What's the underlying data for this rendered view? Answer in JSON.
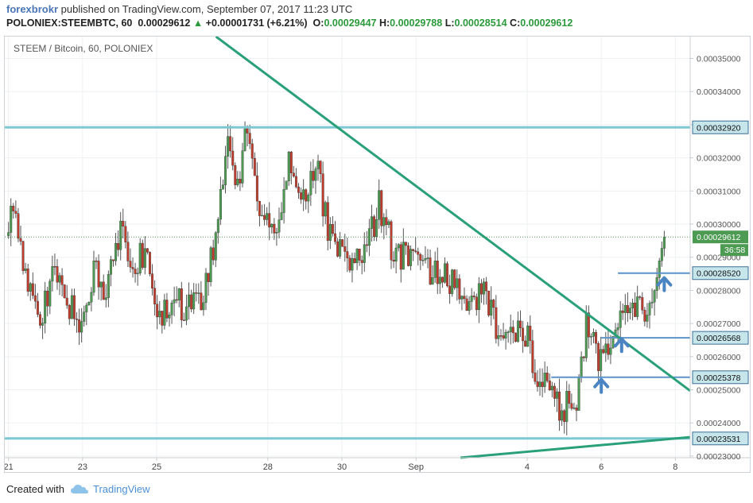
{
  "header": {
    "author": "forexbrokr",
    "published_text": " published on TradingView.com, September 07, 2017 11:23 UTC",
    "symbol": "POLONIEX:STEEMBTC, 60",
    "last": "0.00029612",
    "up_arrow": "▲",
    "change": "+0.00001731 (+6.21%)",
    "o_label": "O:",
    "o_value": "0.00029447",
    "h_label": "H:",
    "h_value": "0.00029788",
    "l_label": "L:",
    "l_value": "0.00028514",
    "c_label": "C:",
    "c_value": "0.00029612"
  },
  "colors": {
    "bull": "#4d9b52",
    "bear": "#c03d2e",
    "level_line": "#7ec8d4",
    "blue_level": "#5b93c9",
    "trendline": "#2aa07a",
    "arrow": "#4a84c2",
    "label_bg": "#c6e6ec"
  },
  "footer": {
    "created_with": "Created with",
    "brand": "TradingView",
    "logo_icon": "tradingview-cloud-icon"
  },
  "chart_data": {
    "type": "candlestick",
    "title": "STEEM / Bitcoin, 60, POLONIEX",
    "ylim": [
      0.0002295,
      0.0003566
    ],
    "y_ticks": [
      "0.00023000",
      "0.00024000",
      "0.00025000",
      "0.00026000",
      "0.00027000",
      "0.00028000",
      "0.00029000",
      "0.00030000",
      "0.00031000",
      "0.00032000",
      "0.00033000",
      "0.00034000",
      "0.00035000"
    ],
    "x_ticks": [
      "21",
      "23",
      "25",
      "28",
      "30",
      "Sep",
      "4",
      "6",
      "8"
    ],
    "x_tick_values": [
      0,
      2,
      4,
      7,
      9,
      11,
      14,
      16,
      18
    ],
    "xlim": [
      -0.1,
      18.4
    ],
    "current_price": "0.00029612",
    "countdown": "36:58",
    "level_lines": [
      {
        "label": "0.00032920",
        "value": 0.0003292,
        "style": "thick",
        "from": -0.1
      },
      {
        "label": "0.00023531",
        "value": 0.00023531,
        "style": "thick",
        "from": -0.1
      },
      {
        "label": "0.00028520",
        "value": 0.0002852,
        "style": "thin",
        "from": 16.45
      },
      {
        "label": "0.00026568",
        "value": 0.00026568,
        "style": "thin",
        "from": 16.0
      },
      {
        "label": "0.00025378",
        "value": 0.00025378,
        "style": "thin",
        "from": 14.65
      }
    ],
    "trendlines": [
      {
        "x1": 5.6,
        "y1": 0.0003566,
        "x2": 18.4,
        "y2": 0.0002497
      },
      {
        "x1": 12.2,
        "y1": 0.0002295,
        "x2": 18.4,
        "y2": 0.0002357
      }
    ],
    "arrows": [
      {
        "x": 16.0,
        "y": 0.0002519
      },
      {
        "x": 16.55,
        "y": 0.0002642
      },
      {
        "x": 17.7,
        "y": 0.0002826
      }
    ],
    "path": [
      [
        0.0,
        0.0002965
      ],
      [
        0.1,
        0.0003075
      ],
      [
        0.4,
        0.000289
      ],
      [
        0.8,
        0.000268
      ],
      [
        1.2,
        0.000286
      ],
      [
        1.6,
        0.000276
      ],
      [
        2.0,
        0.000269
      ],
      [
        2.3,
        0.000286
      ],
      [
        2.6,
        0.000278
      ],
      [
        3.0,
        0.0002985
      ],
      [
        3.3,
        0.000287
      ],
      [
        3.7,
        0.000292
      ],
      [
        4.0,
        0.000271
      ],
      [
        4.4,
        0.000278
      ],
      [
        4.8,
        0.000274
      ],
      [
        5.2,
        0.000276
      ],
      [
        5.6,
        0.000295
      ],
      [
        5.9,
        0.000324
      ],
      [
        6.2,
        0.000309
      ],
      [
        6.4,
        0.000333
      ],
      [
        6.7,
        0.000309
      ],
      [
        7.0,
        0.000299
      ],
      [
        7.3,
        0.000301
      ],
      [
        7.6,
        0.00032
      ],
      [
        7.9,
        0.000306
      ],
      [
        8.3,
        0.000319
      ],
      [
        8.6,
        0.000299
      ],
      [
        8.9,
        0.000293
      ],
      [
        9.2,
        0.000288
      ],
      [
        9.6,
        0.00029
      ],
      [
        10.0,
        0.000306
      ],
      [
        10.4,
        0.000291
      ],
      [
        10.8,
        0.00029
      ],
      [
        11.2,
        0.000288
      ],
      [
        11.6,
        0.000284
      ],
      [
        12.0,
        0.000283
      ],
      [
        12.4,
        0.000272
      ],
      [
        12.8,
        0.00028
      ],
      [
        13.2,
        0.000268
      ],
      [
        13.6,
        0.000269
      ],
      [
        14.0,
        0.000266
      ],
      [
        14.3,
        0.000248
      ],
      [
        14.6,
        0.000253
      ],
      [
        14.9,
        0.000244
      ],
      [
        15.3,
        0.000246
      ],
      [
        15.6,
        0.00027
      ],
      [
        15.9,
        0.00026
      ],
      [
        16.2,
        0.000259
      ],
      [
        16.5,
        0.000275
      ],
      [
        16.8,
        0.000279
      ],
      [
        17.1,
        0.000273
      ],
      [
        17.3,
        0.000276
      ],
      [
        17.5,
        0.000282
      ],
      [
        17.7,
        0.0002961
      ]
    ]
  }
}
